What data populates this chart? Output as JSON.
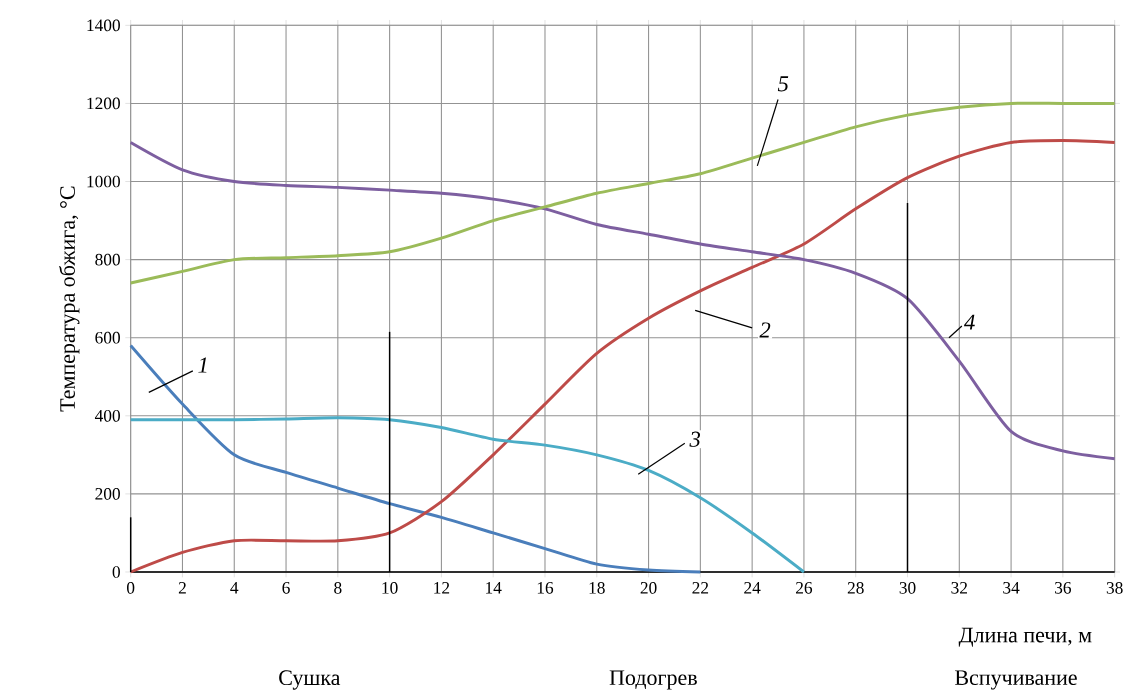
{
  "chart_data": {
    "type": "line",
    "xlabel": "Длина печи, м",
    "ylabel": "Температура обжига, °C",
    "x": [
      0,
      2,
      4,
      6,
      8,
      10,
      12,
      14,
      16,
      18,
      20,
      22,
      24,
      26,
      28,
      30,
      32,
      34,
      36,
      38
    ],
    "xlim": [
      0,
      38
    ],
    "xticks": [
      0,
      2,
      4,
      6,
      8,
      10,
      12,
      14,
      16,
      18,
      20,
      22,
      24,
      26,
      28,
      30,
      32,
      34,
      36,
      38
    ],
    "ylim": [
      0,
      1400
    ],
    "yticks": [
      0,
      200,
      400,
      600,
      800,
      1000,
      1200,
      1400
    ],
    "grid": true,
    "line_style": "solid",
    "marker": "none",
    "series": [
      {
        "name": "1",
        "color": "#4a7ebb",
        "x": [
          0,
          2,
          4,
          6,
          8,
          10,
          12,
          14,
          16,
          18,
          20,
          22
        ],
        "values": [
          580,
          430,
          300,
          255,
          215,
          175,
          140,
          100,
          60,
          20,
          5,
          0
        ]
      },
      {
        "name": "2",
        "color": "#be4b48",
        "values": [
          0,
          50,
          80,
          80,
          80,
          100,
          180,
          300,
          430,
          560,
          650,
          720,
          780,
          840,
          930,
          1010,
          1065,
          1100,
          1105,
          1100
        ]
      },
      {
        "name": "3",
        "color": "#4bacc6",
        "x": [
          0,
          2,
          4,
          6,
          8,
          10,
          12,
          14,
          16,
          18,
          20,
          22,
          24,
          26
        ],
        "values": [
          390,
          390,
          390,
          392,
          395,
          390,
          370,
          340,
          325,
          300,
          260,
          190,
          100,
          0
        ]
      },
      {
        "name": "4",
        "color": "#7d5fa0",
        "values": [
          1100,
          1030,
          1000,
          990,
          985,
          978,
          970,
          955,
          930,
          890,
          865,
          840,
          820,
          800,
          765,
          700,
          540,
          360,
          310,
          290
        ]
      },
      {
        "name": "5",
        "color": "#9bbb59",
        "values": [
          740,
          770,
          800,
          805,
          810,
          820,
          855,
          900,
          935,
          970,
          995,
          1020,
          1060,
          1100,
          1140,
          1170,
          1190,
          1200,
          1200,
          1200
        ]
      },
      {
        "color": "#000000",
        "x": [
          0,
          0
        ],
        "values": [
          0,
          140
        ]
      },
      {
        "color": "#000000",
        "x": [
          10,
          10
        ],
        "values": [
          0,
          615
        ]
      },
      {
        "color": "#000000",
        "x": [
          30,
          30
        ],
        "values": [
          0,
          945
        ]
      }
    ],
    "annotations": [
      "Сушка",
      "Подогрев",
      "Вспучивание"
    ]
  }
}
